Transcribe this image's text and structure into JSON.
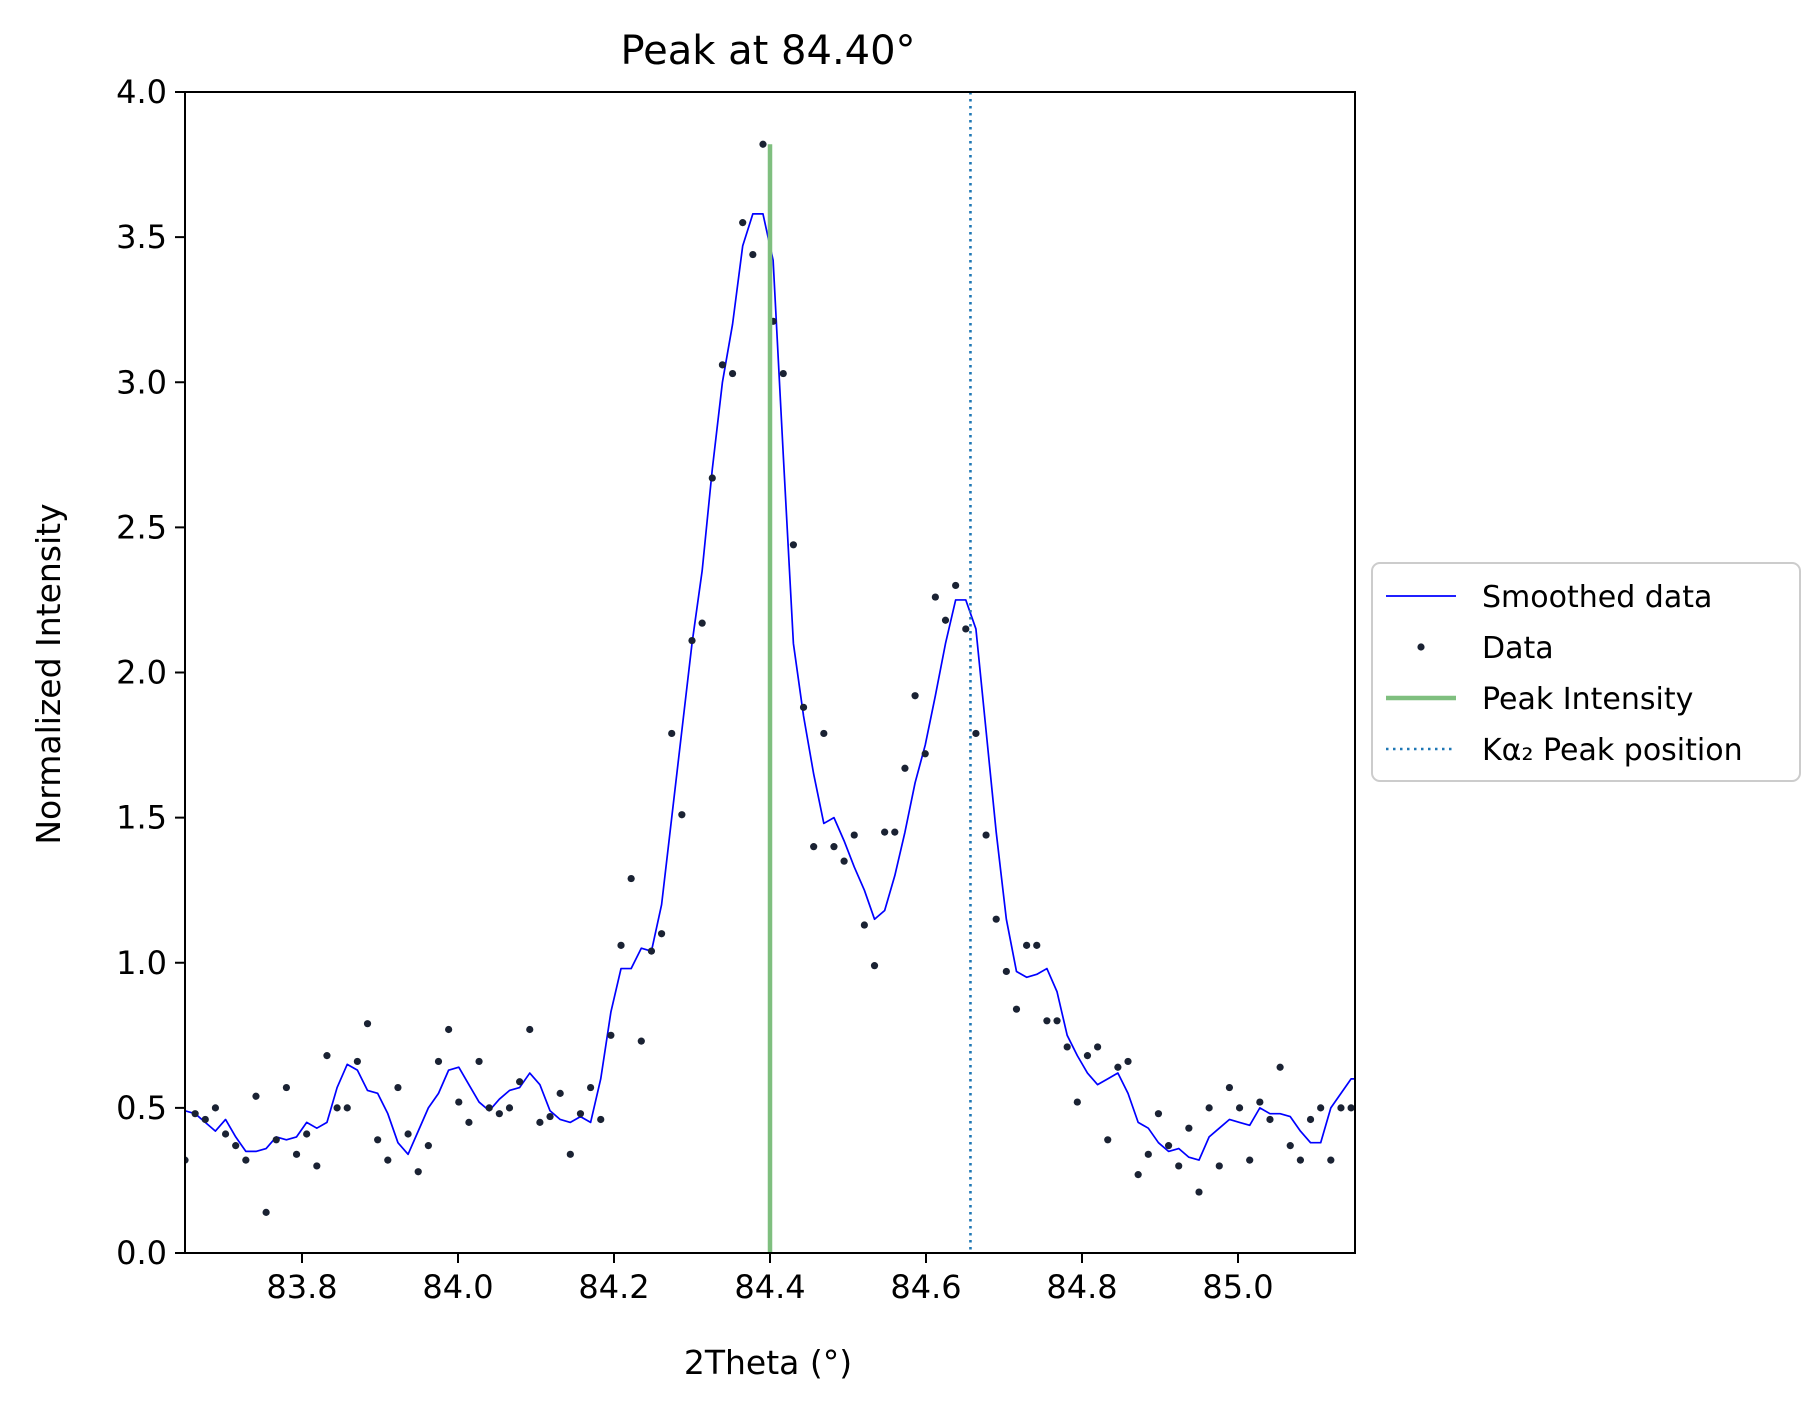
{
  "chart_data": {
    "type": "line",
    "title": "Peak at 84.40°",
    "xlabel": "2Theta (°)",
    "ylabel": "Normalized Intensity",
    "xlim": [
      83.65,
      85.15
    ],
    "ylim": [
      0.0,
      4.0
    ],
    "xticks": [
      83.8,
      84.0,
      84.2,
      84.4,
      84.6,
      84.8,
      85.0
    ],
    "xtick_labels": [
      "83.8",
      "84.0",
      "84.2",
      "84.4",
      "84.6",
      "84.8",
      "85.0"
    ],
    "yticks": [
      0.0,
      0.5,
      1.0,
      1.5,
      2.0,
      2.5,
      3.0,
      3.5,
      4.0
    ],
    "ytick_labels": [
      "0.0",
      "0.5",
      "1.0",
      "1.5",
      "2.0",
      "2.5",
      "3.0",
      "3.5",
      "4.0"
    ],
    "grid": false,
    "legend_position": "outside-right",
    "legend": [
      {
        "label": "Smoothed data",
        "kind": "line",
        "color": "#0000ff"
      },
      {
        "label": "Data",
        "kind": "marker",
        "color": "#1a2233"
      },
      {
        "label": "Peak Intensity",
        "kind": "line",
        "color": "#7fbf7f"
      },
      {
        "label": "Kα₂ Peak position",
        "kind": "dotted",
        "color": "#1f77b4"
      }
    ],
    "data_points": {
      "x": [
        83.65,
        83.663,
        83.676,
        83.689,
        83.702,
        83.715,
        83.728,
        83.741,
        83.754,
        83.767,
        83.78,
        83.793,
        83.806,
        83.819,
        83.832,
        83.845,
        83.858,
        83.871,
        83.884,
        83.897,
        83.91,
        83.923,
        83.936,
        83.949,
        83.962,
        83.975,
        83.988,
        84.001,
        84.014,
        84.027,
        84.04,
        84.053,
        84.066,
        84.079,
        84.092,
        84.105,
        84.118,
        84.131,
        84.144,
        84.157,
        84.17,
        84.183,
        84.196,
        84.209,
        84.222,
        84.235,
        84.248,
        84.261,
        84.274,
        84.287,
        84.3,
        84.313,
        84.326,
        84.339,
        84.352,
        84.365,
        84.378,
        84.391,
        84.404,
        84.417,
        84.43,
        84.443,
        84.456,
        84.469,
        84.482,
        84.495,
        84.508,
        84.521,
        84.534,
        84.547,
        84.56,
        84.573,
        84.586,
        84.599,
        84.612,
        84.625,
        84.638,
        84.651,
        84.664,
        84.677,
        84.69,
        84.703,
        84.716,
        84.729,
        84.742,
        84.755,
        84.768,
        84.781,
        84.794,
        84.807,
        84.82,
        84.833,
        84.846,
        84.859,
        84.872,
        84.885,
        84.898,
        84.911,
        84.924,
        84.937,
        84.95,
        84.963,
        84.976,
        84.989,
        85.002,
        85.015,
        85.028,
        85.041,
        85.054,
        85.067,
        85.08,
        85.093,
        85.106,
        85.119,
        85.132,
        85.145
      ],
      "y": [
        0.32,
        0.48,
        0.46,
        0.5,
        0.41,
        0.37,
        0.32,
        0.54,
        0.14,
        0.39,
        0.57,
        0.34,
        0.41,
        0.3,
        0.68,
        0.5,
        0.5,
        0.66,
        0.79,
        0.39,
        0.32,
        0.57,
        0.41,
        0.28,
        0.37,
        0.66,
        0.77,
        0.52,
        0.45,
        0.66,
        0.5,
        0.48,
        0.5,
        0.59,
        0.77,
        0.45,
        0.47,
        0.55,
        0.34,
        0.48,
        0.57,
        0.46,
        0.75,
        1.06,
        1.29,
        0.73,
        1.04,
        1.1,
        1.79,
        1.51,
        2.11,
        2.17,
        2.67,
        3.06,
        3.03,
        3.55,
        3.44,
        3.82,
        3.21,
        3.03,
        2.44,
        1.88,
        1.4,
        1.79,
        1.4,
        1.35,
        1.44,
        1.13,
        0.99,
        1.45,
        1.45,
        1.67,
        1.92,
        1.72,
        2.26,
        2.18,
        2.3,
        2.15,
        1.79,
        1.44,
        1.15,
        0.97,
        0.84,
        1.06,
        1.06,
        0.8,
        0.8,
        0.71,
        0.52,
        0.68,
        0.71,
        0.39,
        0.64,
        0.66,
        0.27,
        0.34,
        0.48,
        0.37,
        0.3,
        0.43,
        0.21,
        0.5,
        0.3,
        0.57,
        0.5,
        0.32,
        0.52,
        0.46,
        0.64,
        0.37,
        0.32,
        0.46,
        0.5,
        0.32,
        0.5,
        0.5
      ]
    },
    "smoothed": {
      "x": [
        83.65,
        83.663,
        83.676,
        83.689,
        83.702,
        83.715,
        83.728,
        83.741,
        83.754,
        83.767,
        83.78,
        83.793,
        83.806,
        83.819,
        83.832,
        83.845,
        83.858,
        83.871,
        83.884,
        83.897,
        83.91,
        83.923,
        83.936,
        83.949,
        83.962,
        83.975,
        83.988,
        84.001,
        84.014,
        84.027,
        84.04,
        84.053,
        84.066,
        84.079,
        84.092,
        84.105,
        84.118,
        84.131,
        84.144,
        84.157,
        84.17,
        84.183,
        84.196,
        84.209,
        84.222,
        84.235,
        84.248,
        84.261,
        84.274,
        84.287,
        84.3,
        84.313,
        84.326,
        84.339,
        84.352,
        84.365,
        84.378,
        84.391,
        84.404,
        84.417,
        84.43,
        84.443,
        84.456,
        84.469,
        84.482,
        84.495,
        84.508,
        84.521,
        84.534,
        84.547,
        84.56,
        84.573,
        84.586,
        84.599,
        84.612,
        84.625,
        84.638,
        84.651,
        84.664,
        84.677,
        84.69,
        84.703,
        84.716,
        84.729,
        84.742,
        84.755,
        84.768,
        84.781,
        84.794,
        84.807,
        84.82,
        84.833,
        84.846,
        84.859,
        84.872,
        84.885,
        84.898,
        84.911,
        84.924,
        84.937,
        84.95,
        84.963,
        84.976,
        84.989,
        85.002,
        85.015,
        85.028,
        85.041,
        85.054,
        85.067,
        85.08,
        85.093,
        85.106,
        85.119,
        85.132,
        85.145,
        85.15
      ],
      "y": [
        0.49,
        0.48,
        0.45,
        0.42,
        0.46,
        0.4,
        0.35,
        0.35,
        0.36,
        0.4,
        0.39,
        0.4,
        0.45,
        0.43,
        0.45,
        0.57,
        0.65,
        0.63,
        0.56,
        0.55,
        0.48,
        0.38,
        0.34,
        0.42,
        0.5,
        0.55,
        0.63,
        0.64,
        0.58,
        0.52,
        0.49,
        0.53,
        0.56,
        0.57,
        0.62,
        0.58,
        0.49,
        0.46,
        0.45,
        0.47,
        0.45,
        0.6,
        0.83,
        0.98,
        0.98,
        1.05,
        1.04,
        1.2,
        1.5,
        1.8,
        2.1,
        2.35,
        2.7,
        3.0,
        3.2,
        3.47,
        3.58,
        3.58,
        3.42,
        2.75,
        2.1,
        1.85,
        1.65,
        1.48,
        1.5,
        1.42,
        1.33,
        1.25,
        1.15,
        1.18,
        1.3,
        1.45,
        1.62,
        1.75,
        1.92,
        2.1,
        2.25,
        2.25,
        2.15,
        1.8,
        1.45,
        1.15,
        0.97,
        0.95,
        0.96,
        0.98,
        0.9,
        0.75,
        0.68,
        0.62,
        0.58,
        0.6,
        0.62,
        0.55,
        0.45,
        0.43,
        0.38,
        0.35,
        0.36,
        0.33,
        0.32,
        0.4,
        0.43,
        0.46,
        0.45,
        0.44,
        0.5,
        0.48,
        0.48,
        0.47,
        0.42,
        0.38,
        0.38,
        0.5,
        0.55,
        0.6,
        0.6
      ]
    },
    "peak_intensity_line": {
      "x": 84.4,
      "y_from": 0.0,
      "y_to": 3.82
    },
    "ka2_peak_line": {
      "x": 84.657
    },
    "colors": {
      "smoothed": "#0000ff",
      "data": "#1a2233",
      "peak": "#7fbf7f",
      "ka2": "#1f77b4",
      "frame": "#000000",
      "legend_border": "#cccccc"
    }
  }
}
